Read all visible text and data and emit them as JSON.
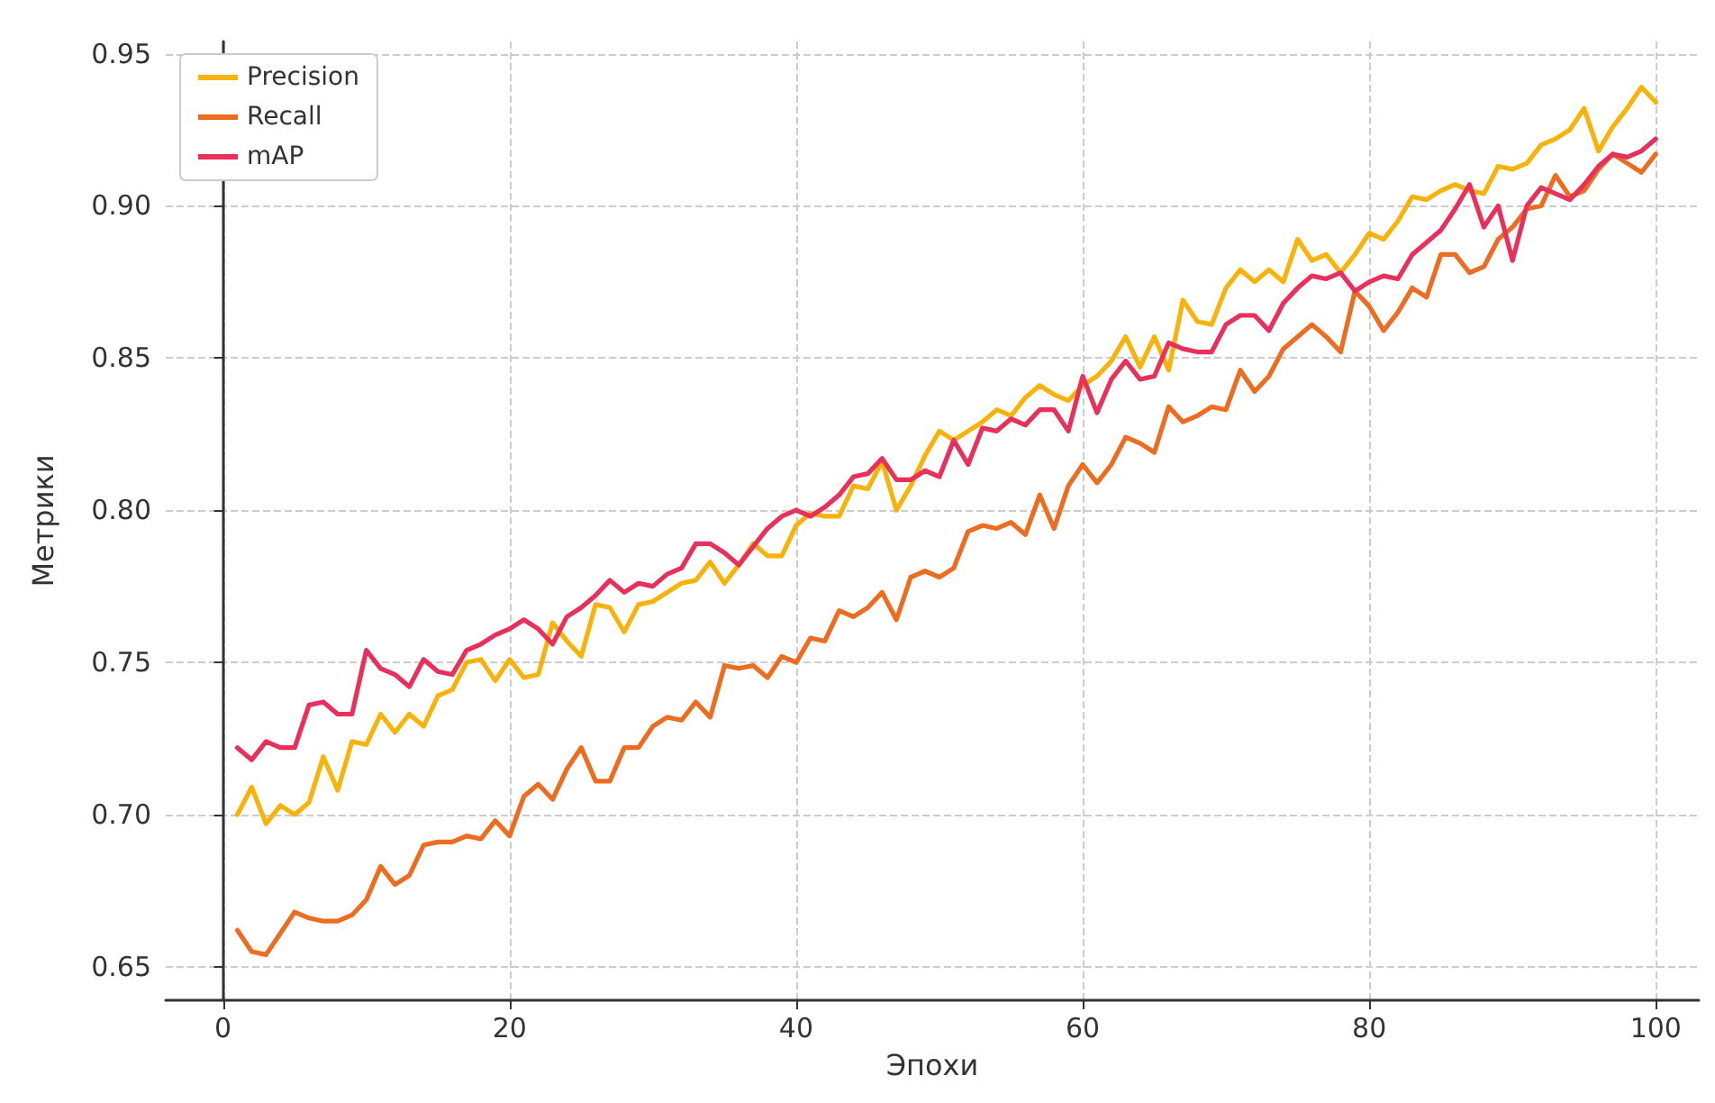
{
  "chart_data": {
    "type": "line",
    "xlabel": "Эпохи",
    "ylabel": "Метрики",
    "legend": "top left",
    "grid": true,
    "line_style": "solid",
    "marker": "none",
    "x": [
      1,
      2,
      3,
      4,
      5,
      6,
      7,
      8,
      9,
      10,
      11,
      12,
      13,
      14,
      15,
      16,
      17,
      18,
      19,
      20,
      21,
      22,
      23,
      24,
      25,
      26,
      27,
      28,
      29,
      30,
      31,
      32,
      33,
      34,
      35,
      36,
      37,
      38,
      39,
      40,
      41,
      42,
      43,
      44,
      45,
      46,
      47,
      48,
      49,
      50,
      51,
      52,
      53,
      54,
      55,
      56,
      57,
      58,
      59,
      60,
      61,
      62,
      63,
      64,
      65,
      66,
      67,
      68,
      69,
      70,
      71,
      72,
      73,
      74,
      75,
      76,
      77,
      78,
      79,
      80,
      81,
      82,
      83,
      84,
      85,
      86,
      87,
      88,
      89,
      90,
      91,
      92,
      93,
      94,
      95,
      96,
      97,
      98,
      99,
      100
    ],
    "xlim": [
      -4,
      103
    ],
    "xticks": [
      0,
      20,
      40,
      60,
      80,
      100
    ],
    "ylim": [
      0.639,
      0.954
    ],
    "yticks": [
      {
        "value": 0.65,
        "label": "0.65"
      },
      {
        "value": 0.7,
        "label": "0.70"
      },
      {
        "value": 0.75,
        "label": "0.75"
      },
      {
        "value": 0.8,
        "label": "0.80"
      },
      {
        "value": 0.85,
        "label": "0.85"
      },
      {
        "value": 0.9,
        "label": "0.90"
      },
      {
        "value": 0.95,
        "label": "0.95"
      }
    ],
    "series": [
      {
        "name": "Precision",
        "color": "#f8b30a",
        "values": [
          0.7,
          0.709,
          0.697,
          0.703,
          0.7,
          0.704,
          0.719,
          0.708,
          0.724,
          0.723,
          0.733,
          0.727,
          0.733,
          0.729,
          0.739,
          0.741,
          0.75,
          0.751,
          0.744,
          0.751,
          0.745,
          0.746,
          0.763,
          0.757,
          0.752,
          0.769,
          0.768,
          0.76,
          0.769,
          0.77,
          0.773,
          0.776,
          0.777,
          0.783,
          0.776,
          0.782,
          0.789,
          0.785,
          0.785,
          0.795,
          0.799,
          0.798,
          0.798,
          0.808,
          0.807,
          0.816,
          0.8,
          0.808,
          0.818,
          0.826,
          0.823,
          0.826,
          0.829,
          0.833,
          0.831,
          0.837,
          0.841,
          0.838,
          0.836,
          0.841,
          0.844,
          0.849,
          0.857,
          0.847,
          0.857,
          0.846,
          0.869,
          0.862,
          0.861,
          0.873,
          0.879,
          0.875,
          0.879,
          0.875,
          0.889,
          0.882,
          0.884,
          0.878,
          0.884,
          0.891,
          0.889,
          0.895,
          0.903,
          0.902,
          0.905,
          0.907,
          0.905,
          0.904,
          0.913,
          0.912,
          0.914,
          0.92,
          0.922,
          0.925,
          0.932,
          0.918,
          0.926,
          0.932,
          0.939,
          0.934
        ]
      },
      {
        "name": "Recall",
        "color": "#ee6c20",
        "values": [
          0.662,
          0.655,
          0.654,
          0.661,
          0.668,
          0.666,
          0.665,
          0.665,
          0.667,
          0.672,
          0.683,
          0.677,
          0.68,
          0.69,
          0.691,
          0.691,
          0.693,
          0.692,
          0.698,
          0.693,
          0.706,
          0.71,
          0.705,
          0.715,
          0.722,
          0.711,
          0.711,
          0.722,
          0.722,
          0.729,
          0.732,
          0.731,
          0.737,
          0.732,
          0.749,
          0.748,
          0.749,
          0.745,
          0.752,
          0.75,
          0.758,
          0.757,
          0.767,
          0.765,
          0.768,
          0.773,
          0.764,
          0.778,
          0.78,
          0.778,
          0.781,
          0.793,
          0.795,
          0.794,
          0.796,
          0.792,
          0.805,
          0.794,
          0.808,
          0.815,
          0.809,
          0.815,
          0.824,
          0.822,
          0.819,
          0.834,
          0.829,
          0.831,
          0.834,
          0.833,
          0.846,
          0.839,
          0.844,
          0.853,
          0.857,
          0.861,
          0.857,
          0.852,
          0.872,
          0.867,
          0.859,
          0.865,
          0.873,
          0.87,
          0.884,
          0.884,
          0.878,
          0.88,
          0.889,
          0.893,
          0.899,
          0.9,
          0.91,
          0.903,
          0.905,
          0.912,
          0.917,
          0.914,
          0.911,
          0.917
        ]
      },
      {
        "name": "mAP",
        "color": "#e8305a",
        "values": [
          0.722,
          0.718,
          0.724,
          0.722,
          0.722,
          0.736,
          0.737,
          0.733,
          0.733,
          0.754,
          0.748,
          0.746,
          0.742,
          0.751,
          0.747,
          0.746,
          0.754,
          0.756,
          0.759,
          0.761,
          0.764,
          0.761,
          0.756,
          0.765,
          0.768,
          0.772,
          0.777,
          0.773,
          0.776,
          0.775,
          0.779,
          0.781,
          0.789,
          0.789,
          0.786,
          0.782,
          0.788,
          0.794,
          0.798,
          0.8,
          0.798,
          0.801,
          0.805,
          0.811,
          0.812,
          0.817,
          0.81,
          0.81,
          0.813,
          0.811,
          0.823,
          0.815,
          0.827,
          0.826,
          0.83,
          0.828,
          0.833,
          0.833,
          0.826,
          0.844,
          0.832,
          0.843,
          0.849,
          0.843,
          0.844,
          0.855,
          0.853,
          0.852,
          0.852,
          0.861,
          0.864,
          0.864,
          0.859,
          0.868,
          0.873,
          0.877,
          0.876,
          0.878,
          0.872,
          0.875,
          0.877,
          0.876,
          0.884,
          0.888,
          0.892,
          0.899,
          0.907,
          0.893,
          0.9,
          0.882,
          0.9,
          0.906,
          0.904,
          0.902,
          0.907,
          0.913,
          0.917,
          0.916,
          0.918,
          0.922
        ]
      }
    ]
  }
}
